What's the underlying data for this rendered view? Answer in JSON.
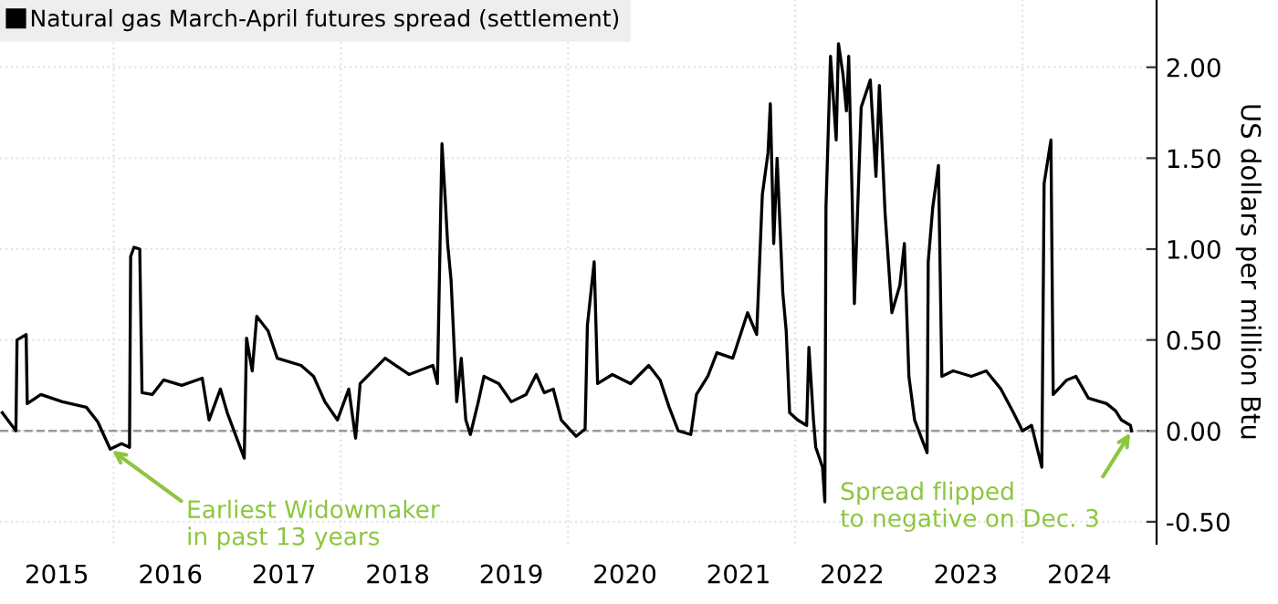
{
  "chart_data": {
    "type": "line",
    "series": [
      {
        "name": "Natural gas March-April futures spread (settlement)",
        "color": "#000000",
        "x": [
          2015.02,
          2015.14,
          2015.15,
          2015.23,
          2015.24,
          2015.36,
          2015.55,
          2015.76,
          2015.86,
          2015.97,
          2016.07,
          2016.14,
          2016.15,
          2016.18,
          2016.23,
          2016.25,
          2016.34,
          2016.44,
          2016.6,
          2016.78,
          2016.84,
          2016.94,
          2017.0,
          2017.15,
          2017.17,
          2017.22,
          2017.26,
          2017.36,
          2017.44,
          2017.65,
          2017.76,
          2017.86,
          2017.97,
          2018.07,
          2018.13,
          2018.17,
          2018.39,
          2018.6,
          2018.81,
          2018.85,
          2018.89,
          2018.92,
          2018.94,
          2018.97,
          2019.02,
          2019.06,
          2019.1,
          2019.14,
          2019.21,
          2019.26,
          2019.39,
          2019.5,
          2019.63,
          2019.72,
          2019.79,
          2019.87,
          2019.94,
          2020.07,
          2020.15,
          2020.17,
          2020.23,
          2020.26,
          2020.39,
          2020.55,
          2020.71,
          2020.81,
          2020.89,
          2020.97,
          2021.08,
          2021.13,
          2021.23,
          2021.31,
          2021.45,
          2021.58,
          2021.66,
          2021.71,
          2021.76,
          2021.78,
          2021.81,
          2021.84,
          2021.89,
          2021.92,
          2021.95,
          2022.02,
          2022.1,
          2022.12,
          2022.16,
          2022.18,
          2022.24,
          2022.26,
          2022.27,
          2022.31,
          2022.36,
          2022.38,
          2022.42,
          2022.45,
          2022.47,
          2022.5,
          2022.52,
          2022.58,
          2022.66,
          2022.71,
          2022.74,
          2022.79,
          2022.85,
          2022.92,
          2022.96,
          2023.0,
          2023.05,
          2023.16,
          2023.17,
          2023.21,
          2023.26,
          2023.29,
          2023.39,
          2023.55,
          2023.68,
          2023.81,
          2023.92,
          2024.0,
          2024.08,
          2024.17,
          2024.19,
          2024.25,
          2024.27,
          2024.39,
          2024.47,
          2024.58,
          2024.74,
          2024.82,
          2024.87,
          2024.95,
          2024.96
        ],
        "values": [
          0.1,
          0.0,
          0.5,
          0.53,
          0.15,
          0.2,
          0.16,
          0.13,
          0.05,
          -0.1,
          -0.07,
          -0.09,
          0.96,
          1.01,
          1.0,
          0.21,
          0.2,
          0.28,
          0.25,
          0.29,
          0.06,
          0.23,
          0.1,
          -0.15,
          0.51,
          0.33,
          0.63,
          0.55,
          0.4,
          0.36,
          0.3,
          0.16,
          0.06,
          0.23,
          -0.04,
          0.26,
          0.4,
          0.31,
          0.36,
          0.26,
          1.58,
          1.26,
          1.03,
          0.83,
          0.16,
          0.4,
          0.06,
          -0.02,
          0.16,
          0.3,
          0.26,
          0.16,
          0.2,
          0.31,
          0.21,
          0.23,
          0.06,
          -0.03,
          0.01,
          0.58,
          0.93,
          0.26,
          0.31,
          0.26,
          0.36,
          0.28,
          0.13,
          0.0,
          -0.02,
          0.2,
          0.3,
          0.43,
          0.4,
          0.65,
          0.53,
          1.3,
          1.53,
          1.8,
          1.03,
          1.5,
          0.76,
          0.55,
          0.1,
          0.06,
          0.03,
          0.46,
          0.06,
          -0.09,
          -0.2,
          -0.39,
          1.23,
          2.06,
          1.6,
          2.13,
          1.96,
          1.76,
          2.06,
          1.3,
          0.7,
          1.78,
          1.93,
          1.4,
          1.9,
          1.2,
          0.65,
          0.8,
          1.03,
          0.3,
          0.06,
          -0.12,
          0.93,
          1.23,
          1.46,
          0.3,
          0.33,
          0.3,
          0.33,
          0.23,
          0.1,
          0.0,
          0.03,
          -0.2,
          1.36,
          1.6,
          0.2,
          0.28,
          0.3,
          0.18,
          0.15,
          0.11,
          0.06,
          0.03,
          0.0
        ]
      }
    ],
    "ylabel": "US dollars per million Btu",
    "xlim": [
      2015.0,
      2025.18
    ],
    "xticks": [
      {
        "value": 2015.5,
        "label": "2015"
      },
      {
        "value": 2016,
        "label": null
      },
      {
        "value": 2016.5,
        "label": "2016"
      },
      {
        "value": 2017.5,
        "label": "2017"
      },
      {
        "value": 2018,
        "label": null
      },
      {
        "value": 2018.5,
        "label": "2018"
      },
      {
        "value": 2019.5,
        "label": "2019"
      },
      {
        "value": 2020,
        "label": null
      },
      {
        "value": 2020.5,
        "label": "2020"
      },
      {
        "value": 2021.5,
        "label": "2021"
      },
      {
        "value": 2022,
        "label": null
      },
      {
        "value": 2022.5,
        "label": "2022"
      },
      {
        "value": 2023.5,
        "label": "2023"
      },
      {
        "value": 2024,
        "label": null
      },
      {
        "value": 2024.5,
        "label": "2024"
      }
    ],
    "ylim": [
      -0.62,
      2.37
    ],
    "yticks": [
      {
        "value": -0.5,
        "label": "-0.50"
      },
      {
        "value": 0,
        "label": "0.00"
      },
      {
        "value": 0.5,
        "label": "0.50"
      },
      {
        "value": 1,
        "label": "1.00"
      },
      {
        "value": 1.5,
        "label": "1.50"
      },
      {
        "value": 2,
        "label": "2.00"
      }
    ],
    "ref_lines": [
      {
        "axis": "y",
        "value": 0,
        "label": null,
        "color": "#999999",
        "line_style": "dashed"
      }
    ],
    "annotations": [
      {
        "text": "Earliest Widowmaker\nin past 13 years",
        "x": 2015.97,
        "y": -0.1
      },
      {
        "text": "Spread flipped\nto negative on Dec. 3",
        "x": 2024.96,
        "y": 0.0
      }
    ],
    "grid": true,
    "legend": "top left",
    "line_style": "solid",
    "marker": "none"
  }
}
